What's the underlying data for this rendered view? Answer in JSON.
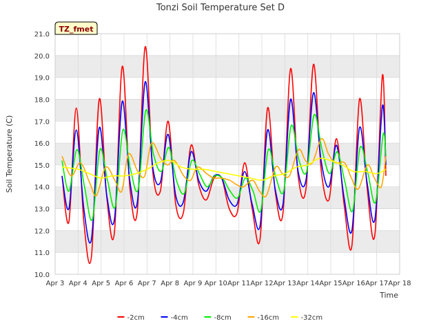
{
  "chart_data": {
    "type": "line",
    "title": "Tonzi Soil Temperature Set D",
    "xlabel": "Time",
    "ylabel": "Soil Temperature (C)",
    "badge": "TZ_fmet",
    "ylim": [
      10.0,
      21.0
    ],
    "xlim": [
      0,
      15
    ],
    "y_ticks": [
      "10.0",
      "11.0",
      "12.0",
      "13.0",
      "14.0",
      "15.0",
      "16.0",
      "17.0",
      "18.0",
      "19.0",
      "20.0",
      "21.0"
    ],
    "x_ticks": [
      "Apr 3",
      "Apr 4",
      "Apr 5",
      "Apr 6",
      "Apr 7",
      "Apr 8",
      "Apr 9",
      "Apr 10",
      "Apr 11",
      "Apr 12",
      "Apr 13",
      "Apr 14",
      "Apr 15",
      "Apr 16",
      "Apr 17",
      "Apr 18"
    ],
    "grid": true,
    "legend_position": "bottom-center",
    "colors": {
      "band": "#ebebeb",
      "axes_bg": "#ffffff",
      "badge_bg": "#ffffcc",
      "badge_text": "#8b0000"
    },
    "series_note": "x values are days since Apr 3 00:00",
    "series": [
      {
        "name": "-2cm",
        "color": "#ff0000",
        "x": [
          0.3,
          0.6,
          0.92,
          1.25,
          1.58,
          1.92,
          2.25,
          2.58,
          2.92,
          3.25,
          3.58,
          3.92,
          4.25,
          4.58,
          4.92,
          5.25,
          5.58,
          5.92,
          6.25,
          6.58,
          6.92,
          7.25,
          7.58,
          7.92,
          8.25,
          8.58,
          8.92,
          9.25,
          9.58,
          9.92,
          10.25,
          10.58,
          10.92,
          11.25,
          11.58,
          11.92,
          12.25,
          12.58,
          12.92,
          13.25,
          13.58,
          13.92,
          14.25,
          14.4
        ],
        "y": [
          14.5,
          12.4,
          17.6,
          12.4,
          10.8,
          18.0,
          13.5,
          11.9,
          19.5,
          14.0,
          12.9,
          20.4,
          14.7,
          13.8,
          17.0,
          13.2,
          12.8,
          15.9,
          14.1,
          13.4,
          14.4,
          14.4,
          13.0,
          12.8,
          15.1,
          13.0,
          11.6,
          17.6,
          13.8,
          12.8,
          19.4,
          14.5,
          13.9,
          19.6,
          14.8,
          13.4,
          16.2,
          13.2,
          11.3,
          18.0,
          14.0,
          11.8,
          19.1,
          14.5
        ]
      },
      {
        "name": "-4cm",
        "color": "#0000ff",
        "x": [
          0.3,
          0.6,
          0.92,
          1.25,
          1.58,
          1.92,
          2.25,
          2.58,
          2.92,
          3.25,
          3.58,
          3.92,
          4.25,
          4.58,
          4.92,
          5.25,
          5.58,
          5.92,
          6.25,
          6.58,
          6.92,
          7.25,
          7.58,
          7.92,
          8.25,
          8.58,
          8.92,
          9.25,
          9.58,
          9.92,
          10.25,
          10.58,
          10.92,
          11.25,
          11.58,
          11.92,
          12.25,
          12.58,
          12.92,
          13.25,
          13.58,
          13.92,
          14.25,
          14.4
        ],
        "y": [
          14.5,
          13.0,
          16.6,
          13.0,
          11.6,
          16.7,
          13.6,
          12.5,
          17.9,
          14.3,
          13.3,
          18.8,
          14.9,
          14.2,
          16.4,
          13.6,
          13.3,
          15.6,
          14.3,
          13.8,
          14.5,
          14.4,
          13.4,
          13.2,
          14.7,
          13.2,
          12.2,
          16.6,
          13.9,
          13.2,
          18.0,
          14.7,
          14.3,
          18.3,
          15.2,
          14.0,
          15.9,
          13.5,
          12.0,
          16.7,
          14.2,
          12.5,
          17.7,
          15.0
        ]
      },
      {
        "name": "-8cm",
        "color": "#00ee00",
        "x": [
          0.3,
          0.6,
          0.95,
          1.28,
          1.62,
          1.95,
          2.28,
          2.62,
          2.95,
          3.28,
          3.62,
          3.95,
          4.28,
          4.62,
          4.95,
          5.28,
          5.62,
          5.95,
          6.28,
          6.62,
          6.95,
          7.28,
          7.62,
          7.95,
          8.28,
          8.62,
          8.95,
          9.28,
          9.62,
          9.95,
          10.28,
          10.62,
          10.95,
          11.28,
          11.62,
          11.95,
          12.28,
          12.62,
          12.95,
          13.28,
          13.62,
          13.95,
          14.28,
          14.4
        ],
        "y": [
          15.2,
          13.8,
          15.7,
          14.0,
          12.5,
          15.7,
          14.3,
          13.1,
          16.6,
          14.8,
          13.9,
          17.5,
          15.5,
          14.7,
          15.8,
          14.3,
          13.7,
          15.2,
          14.6,
          14.0,
          14.5,
          14.4,
          13.8,
          13.5,
          14.4,
          13.8,
          12.9,
          15.7,
          14.4,
          13.8,
          16.8,
          15.2,
          14.7,
          17.3,
          15.7,
          14.6,
          15.6,
          14.2,
          12.9,
          15.8,
          14.6,
          13.3,
          16.4,
          15.4
        ]
      },
      {
        "name": "-16cm",
        "color": "#ffa500",
        "x": [
          0.3,
          0.7,
          1.1,
          1.5,
          1.8,
          2.2,
          2.6,
          2.9,
          3.2,
          3.6,
          3.9,
          4.2,
          4.6,
          4.9,
          5.2,
          5.6,
          5.9,
          6.2,
          6.6,
          6.9,
          7.2,
          7.6,
          7.9,
          8.2,
          8.6,
          8.9,
          9.2,
          9.6,
          9.9,
          10.2,
          10.6,
          10.9,
          11.2,
          11.6,
          11.9,
          12.2,
          12.6,
          12.9,
          13.2,
          13.6,
          13.9,
          14.2,
          14.4
        ],
        "y": [
          15.4,
          14.5,
          15.1,
          14.2,
          13.6,
          14.9,
          14.3,
          13.8,
          15.5,
          14.7,
          14.5,
          16.0,
          15.3,
          15.0,
          15.2,
          14.5,
          14.3,
          14.9,
          14.6,
          14.4,
          14.4,
          14.3,
          14.1,
          14.0,
          14.3,
          13.8,
          13.6,
          14.9,
          14.6,
          14.5,
          15.7,
          15.2,
          15.1,
          16.2,
          15.5,
          15.1,
          15.1,
          14.4,
          13.9,
          15.0,
          14.4,
          14.0,
          15.4
        ]
      },
      {
        "name": "-32cm",
        "color": "#ffff00",
        "x": [
          0.3,
          1.0,
          1.5,
          2.0,
          2.5,
          3.0,
          3.5,
          4.0,
          4.5,
          5.0,
          5.5,
          6.0,
          6.5,
          7.0,
          7.5,
          8.0,
          8.5,
          9.0,
          9.5,
          10.0,
          10.5,
          11.0,
          11.5,
          12.0,
          12.5,
          13.0,
          13.5,
          14.0,
          14.4
        ],
        "y": [
          14.9,
          14.8,
          14.6,
          14.4,
          14.5,
          14.5,
          14.6,
          14.8,
          15.1,
          15.2,
          14.9,
          14.8,
          14.8,
          14.7,
          14.6,
          14.5,
          14.4,
          14.3,
          14.5,
          14.6,
          14.9,
          15.0,
          15.3,
          15.2,
          15.0,
          14.7,
          14.7,
          14.6,
          14.8
        ]
      }
    ]
  }
}
